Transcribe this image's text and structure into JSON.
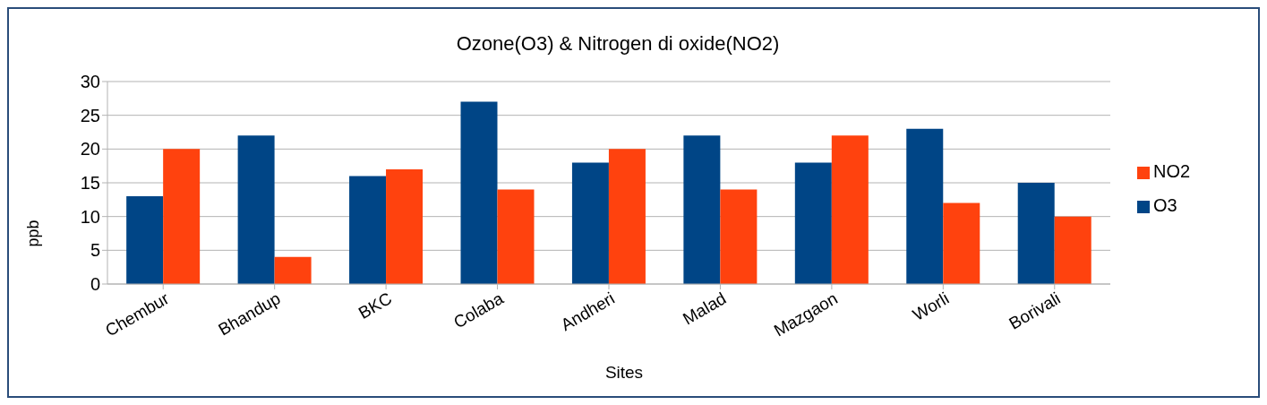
{
  "chart_data": {
    "type": "bar",
    "title": "Ozone(O3) & Nitrogen di oxide(NO2)",
    "xlabel": "Sites",
    "ylabel": "ppb",
    "categories": [
      "Chembur",
      "Bhandup",
      "BKC",
      "Colaba",
      "Andheri",
      "Malad",
      "Mazgaon",
      "Worli",
      "Borivali"
    ],
    "series": [
      {
        "name": "O3",
        "color": "#004586",
        "values": [
          13,
          22,
          16,
          27,
          18,
          22,
          18,
          23,
          15
        ]
      },
      {
        "name": "NO2",
        "color": "#ff420e",
        "values": [
          20,
          4,
          17,
          14,
          20,
          14,
          22,
          12,
          10
        ]
      }
    ],
    "ylim": [
      0,
      30
    ],
    "yticks": [
      0,
      5,
      10,
      15,
      20,
      25,
      30
    ],
    "grid": "y",
    "legend": "right"
  }
}
